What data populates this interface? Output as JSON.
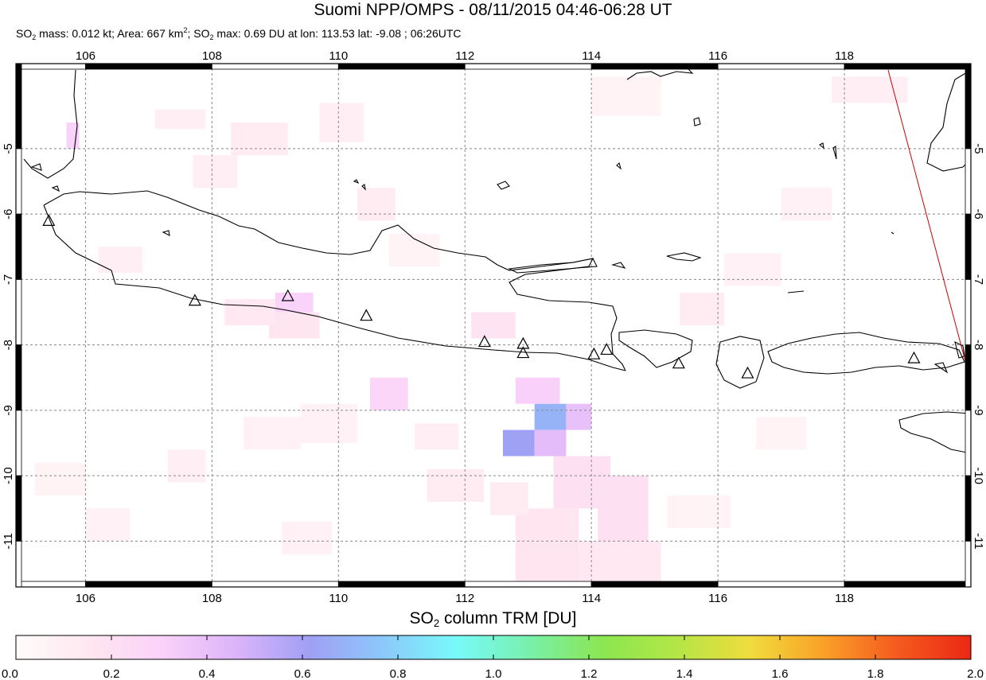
{
  "header": {
    "title": "Suomi NPP/OMPS - 08/11/2015 04:46-06:28 UT",
    "stats": {
      "mass_prefix": "SO",
      "mass_sub": "2",
      "mass_text": " mass: 0.012 kt; Area: 667 km",
      "area_sup": "2",
      "max_prefix": "; SO",
      "max_sub": "2",
      "max_text": " max: 0.69 DU at lon: 113.53 lat: -9.08 ; 06:26UTC"
    }
  },
  "map": {
    "lon_range": [
      104.9,
      120.0
    ],
    "lat_range": [
      -11.7,
      -3.7
    ],
    "lon_ticks": [
      "106",
      "108",
      "110",
      "112",
      "114",
      "116",
      "118"
    ],
    "lon_tick_values": [
      106,
      108,
      110,
      112,
      114,
      116,
      118
    ],
    "lat_ticks": [
      "-5",
      "-6",
      "-7",
      "-8",
      "-9",
      "-10",
      "-11"
    ],
    "lat_tick_values": [
      -5,
      -6,
      -7,
      -8,
      -9,
      -10,
      -11
    ],
    "grid": "dashed",
    "swath_edge_color": "#cc0000",
    "volcanoes": [
      {
        "lon": 105.42,
        "lat": -6.1
      },
      {
        "lon": 107.73,
        "lat": -7.32
      },
      {
        "lon": 109.2,
        "lat": -7.25
      },
      {
        "lon": 110.44,
        "lat": -7.55
      },
      {
        "lon": 112.31,
        "lat": -7.95
      },
      {
        "lon": 112.92,
        "lat": -7.98
      },
      {
        "lon": 112.92,
        "lat": -8.12
      },
      {
        "lon": 114.04,
        "lat": -8.14
      },
      {
        "lon": 114.24,
        "lat": -8.07
      },
      {
        "lon": 115.38,
        "lat": -8.28
      },
      {
        "lon": 116.47,
        "lat": -8.43
      },
      {
        "lon": 119.1,
        "lat": -8.2
      }
    ],
    "so2_cells": [
      {
        "lon": [
          112.6,
          113.1
        ],
        "lat": [
          -9.3,
          -9.7
        ],
        "du": 0.62
      },
      {
        "lon": [
          113.1,
          113.6
        ],
        "lat": [
          -8.9,
          -9.3
        ],
        "du": 0.69
      },
      {
        "lon": [
          113.1,
          113.6
        ],
        "lat": [
          -9.3,
          -9.7
        ],
        "du": 0.42
      },
      {
        "lon": [
          113.6,
          114.0
        ],
        "lat": [
          -8.9,
          -9.3
        ],
        "du": 0.4
      },
      {
        "lon": [
          112.8,
          113.5
        ],
        "lat": [
          -8.5,
          -8.9
        ],
        "du": 0.32
      },
      {
        "lon": [
          109.0,
          109.6
        ],
        "lat": [
          -7.2,
          -7.6
        ],
        "du": 0.3
      },
      {
        "lon": [
          110.5,
          111.1
        ],
        "lat": [
          -8.5,
          -9.0
        ],
        "du": 0.28
      },
      {
        "lon": [
          105.7,
          105.9
        ],
        "lat": [
          -4.6,
          -5.0
        ],
        "du": 0.3
      },
      {
        "lon": [
          112.1,
          112.8
        ],
        "lat": [
          -7.5,
          -7.9
        ],
        "du": 0.18
      },
      {
        "lon": [
          113.4,
          114.3
        ],
        "lat": [
          -9.7,
          -10.5
        ],
        "du": 0.2
      },
      {
        "lon": [
          114.1,
          114.9
        ],
        "lat": [
          -10.0,
          -11.0
        ],
        "du": 0.2
      },
      {
        "lon": [
          112.8,
          113.8
        ],
        "lat": [
          -10.5,
          -11.7
        ],
        "du": 0.16
      },
      {
        "lon": [
          113.8,
          115.1
        ],
        "lat": [
          -11.0,
          -11.7
        ],
        "du": 0.14
      },
      {
        "lon": [
          108.9,
          109.7
        ],
        "lat": [
          -7.5,
          -7.9
        ],
        "du": 0.16
      },
      {
        "lon": [
          108.2,
          109.0
        ],
        "lat": [
          -7.3,
          -7.7
        ],
        "du": 0.14
      },
      {
        "lon": [
          107.1,
          107.9
        ],
        "lat": [
          -4.4,
          -4.7
        ],
        "du": 0.1
      },
      {
        "lon": [
          108.3,
          109.2
        ],
        "lat": [
          -4.6,
          -5.1
        ],
        "du": 0.12
      },
      {
        "lon": [
          109.7,
          110.4
        ],
        "lat": [
          -4.3,
          -4.9
        ],
        "du": 0.1
      },
      {
        "lon": [
          110.3,
          110.9
        ],
        "lat": [
          -5.6,
          -6.1
        ],
        "du": 0.12
      },
      {
        "lon": [
          107.7,
          108.4
        ],
        "lat": [
          -5.1,
          -5.6
        ],
        "du": 0.1
      },
      {
        "lon": [
          106.2,
          106.9
        ],
        "lat": [
          -6.5,
          -6.9
        ],
        "du": 0.1
      },
      {
        "lon": [
          111.2,
          111.9
        ],
        "lat": [
          -9.2,
          -9.6
        ],
        "du": 0.1
      },
      {
        "lon": [
          111.4,
          112.3
        ],
        "lat": [
          -9.9,
          -10.4
        ],
        "du": 0.12
      },
      {
        "lon": [
          112.4,
          113.0
        ],
        "lat": [
          -10.1,
          -10.6
        ],
        "du": 0.12
      },
      {
        "lon": [
          115.4,
          116.1
        ],
        "lat": [
          -7.2,
          -7.7
        ],
        "du": 0.12
      },
      {
        "lon": [
          116.1,
          117.0
        ],
        "lat": [
          -6.6,
          -7.1
        ],
        "du": 0.08
      },
      {
        "lon": [
          117.0,
          117.8
        ],
        "lat": [
          -5.6,
          -6.1
        ],
        "du": 0.08
      },
      {
        "lon": [
          117.8,
          119.0
        ],
        "lat": [
          -3.9,
          -4.3
        ],
        "du": 0.1
      },
      {
        "lon": [
          114.0,
          115.1
        ],
        "lat": [
          -3.9,
          -4.5
        ],
        "du": 0.06
      },
      {
        "lon": [
          108.5,
          109.4
        ],
        "lat": [
          -9.1,
          -9.6
        ],
        "du": 0.08
      },
      {
        "lon": [
          109.4,
          110.3
        ],
        "lat": [
          -8.9,
          -9.5
        ],
        "du": 0.08
      },
      {
        "lon": [
          107.3,
          107.9
        ],
        "lat": [
          -9.6,
          -10.1
        ],
        "du": 0.1
      },
      {
        "lon": [
          106.0,
          106.7
        ],
        "lat": [
          -10.5,
          -11.0
        ],
        "du": 0.08
      },
      {
        "lon": [
          109.1,
          109.9
        ],
        "lat": [
          -10.7,
          -11.2
        ],
        "du": 0.08
      },
      {
        "lon": [
          115.2,
          116.2
        ],
        "lat": [
          -10.3,
          -10.8
        ],
        "du": 0.06
      },
      {
        "lon": [
          116.6,
          117.4
        ],
        "lat": [
          -9.1,
          -9.6
        ],
        "du": 0.06
      },
      {
        "lon": [
          105.2,
          106.0
        ],
        "lat": [
          -9.8,
          -10.3
        ],
        "du": 0.06
      },
      {
        "lon": [
          110.8,
          111.6
        ],
        "lat": [
          -6.3,
          -6.8
        ],
        "du": 0.06
      }
    ]
  },
  "colorbar": {
    "title_prefix": "SO",
    "title_sub": "2",
    "title_suffix": " column TRM [DU]",
    "min": 0.0,
    "max": 2.0,
    "tick_labels": [
      "0.0",
      "0.2",
      "0.4",
      "0.6",
      "0.8",
      "1.0",
      "1.2",
      "1.4",
      "1.6",
      "1.8",
      "2.0"
    ],
    "stops": [
      "#fffcfa",
      "#ffe6f0",
      "#fad2fa",
      "#dcb4fa",
      "#a0a0f5",
      "#8cc8fa",
      "#78fafa",
      "#78f0aa",
      "#8ce650",
      "#b4e646",
      "#f0dc3c",
      "#faa028",
      "#f55a1e",
      "#eb2814"
    ]
  }
}
